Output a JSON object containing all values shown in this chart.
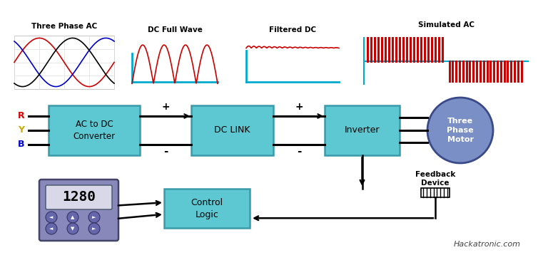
{
  "bg_color": "#ffffff",
  "box_color": "#5dc8d2",
  "box_edge": "#3a9aaa",
  "motor_color": "#7b8fc7",
  "motor_edge": "#3a4a88",
  "keypad_bg": "#8888bb",
  "keypad_face": "#ccccdd",
  "waveform_labels": [
    "Three Phase AC",
    "DC Full Wave",
    "Filtered DC",
    "Simulated AC"
  ],
  "block_labels": [
    "AC to DC\nConverter",
    "DC LINK",
    "Inverter"
  ],
  "motor_label": "Three\nPhase\nMotor",
  "control_label": "Control\nLogic",
  "feedback_label": "Feedback\nDevice",
  "keypad_number": "1280",
  "watermark": "Hackatronic.com",
  "phase_colors": [
    "#cc0000",
    "#0000cc",
    "#000000"
  ],
  "wave_color": "#cc0000",
  "sim_color": "#cc0000",
  "baseline_color": "#00aacc",
  "rybcolors": [
    "#dd0000",
    "#ccaa00",
    "#0000cc"
  ],
  "rybletters": [
    "R",
    "Y",
    "B"
  ],
  "fig_w": 7.68,
  "fig_h": 3.58,
  "dpi": 100
}
